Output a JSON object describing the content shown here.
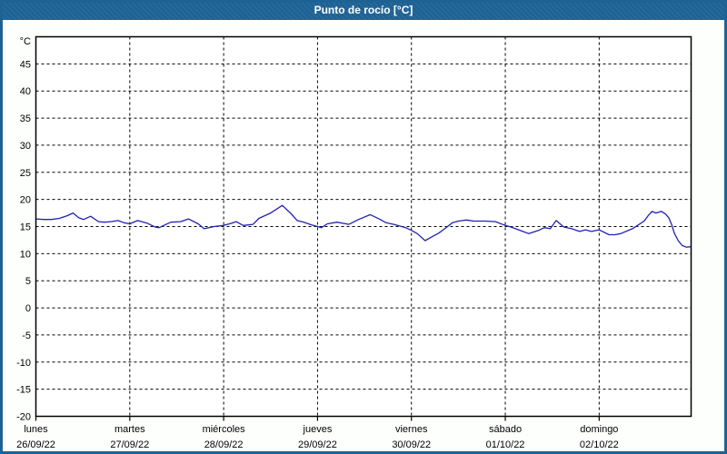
{
  "window": {
    "title": "Punto de rocío [°C]"
  },
  "colors": {
    "titlebar_bg": "#1e6294",
    "frame_border": "#1e6294",
    "page_bg": "#fdfffd",
    "plot_bg": "#ffffff",
    "grid": "#000000",
    "axis": "#000000",
    "text": "#000000",
    "line": "#2222b0",
    "title_text": "#ffffff"
  },
  "chart_data": {
    "type": "line",
    "title": "Punto de rocío [°C]",
    "unit_label": "°C",
    "ylim": [
      -20,
      50
    ],
    "yticks": [
      45,
      40,
      35,
      30,
      25,
      20,
      15,
      10,
      5,
      0,
      -5,
      -10,
      -15,
      -20
    ],
    "grid": "dashed",
    "x_hours_range": [
      0,
      167.5
    ],
    "x_gridline_hours": [
      24,
      48,
      72,
      96,
      120,
      144
    ],
    "x_tick_hours": [
      0,
      24,
      48,
      72,
      96,
      120,
      144
    ],
    "legend": "none",
    "day_labels": [
      {
        "name": "lunes",
        "date": "26/09/22",
        "hour": 0
      },
      {
        "name": "martes",
        "date": "27/09/22",
        "hour": 24
      },
      {
        "name": "miércoles",
        "date": "28/09/22",
        "hour": 48
      },
      {
        "name": "jueves",
        "date": "29/09/22",
        "hour": 72
      },
      {
        "name": "viernes",
        "date": "30/09/22",
        "hour": 96
      },
      {
        "name": "sábado",
        "date": "01/10/22",
        "hour": 120
      },
      {
        "name": "domingo",
        "date": "02/10/22",
        "hour": 144
      }
    ],
    "series": [
      {
        "name": "Punto de rocío",
        "color": "#2222b0",
        "points": [
          [
            0,
            16.4
          ],
          [
            2,
            16.3
          ],
          [
            4,
            16.3
          ],
          [
            6,
            16.5
          ],
          [
            8,
            17.0
          ],
          [
            9.5,
            17.5
          ],
          [
            11,
            16.6
          ],
          [
            12.2,
            16.3
          ],
          [
            14,
            16.9
          ],
          [
            16,
            15.9
          ],
          [
            17.5,
            15.8
          ],
          [
            19.2,
            15.9
          ],
          [
            21,
            16.1
          ],
          [
            22.5,
            15.7
          ],
          [
            24,
            15.5
          ],
          [
            26,
            16.1
          ],
          [
            28.5,
            15.6
          ],
          [
            30.5,
            14.9
          ],
          [
            31.5,
            14.8
          ],
          [
            33,
            15.3
          ],
          [
            34.5,
            15.8
          ],
          [
            37,
            15.9
          ],
          [
            39,
            16.4
          ],
          [
            41.5,
            15.5
          ],
          [
            43,
            14.6
          ],
          [
            45.5,
            15.0
          ],
          [
            48,
            15.2
          ],
          [
            50,
            15.6
          ],
          [
            51.2,
            15.9
          ],
          [
            53,
            15.2
          ],
          [
            55.5,
            15.4
          ],
          [
            57,
            16.5
          ],
          [
            60,
            17.5
          ],
          [
            63,
            18.9
          ],
          [
            65.5,
            17.2
          ],
          [
            66.8,
            16.1
          ],
          [
            68.5,
            15.8
          ],
          [
            70.5,
            15.3
          ],
          [
            72,
            15.0
          ],
          [
            73,
            14.8
          ],
          [
            74.5,
            15.5
          ],
          [
            77,
            15.8
          ],
          [
            80,
            15.4
          ],
          [
            82.5,
            16.3
          ],
          [
            85.5,
            17.2
          ],
          [
            88,
            16.3
          ],
          [
            89.5,
            15.7
          ],
          [
            91.5,
            15.4
          ],
          [
            93,
            15.1
          ],
          [
            94.5,
            14.8
          ],
          [
            96,
            14.3
          ],
          [
            97.5,
            13.7
          ],
          [
            99.5,
            12.4
          ],
          [
            101.5,
            13.2
          ],
          [
            103,
            13.8
          ],
          [
            104.5,
            14.6
          ],
          [
            106.5,
            15.7
          ],
          [
            108,
            16.0
          ],
          [
            110,
            16.2
          ],
          [
            112,
            16.0
          ],
          [
            115,
            16.0
          ],
          [
            117.5,
            15.9
          ],
          [
            120,
            15.2
          ],
          [
            121.5,
            14.9
          ],
          [
            124.5,
            14.1
          ],
          [
            126,
            13.7
          ],
          [
            128.5,
            14.3
          ],
          [
            130,
            14.8
          ],
          [
            131.5,
            14.6
          ],
          [
            133,
            16.1
          ],
          [
            135,
            14.9
          ],
          [
            137,
            14.6
          ],
          [
            139,
            14.1
          ],
          [
            140.5,
            14.4
          ],
          [
            142,
            14.1
          ],
          [
            144,
            14.4
          ],
          [
            146.5,
            13.5
          ],
          [
            148,
            13.5
          ],
          [
            149.5,
            13.7
          ],
          [
            152.5,
            14.6
          ],
          [
            154,
            15.3
          ],
          [
            155.5,
            16.0
          ],
          [
            156.5,
            17.0
          ],
          [
            157.5,
            17.8
          ],
          [
            158.5,
            17.5
          ],
          [
            159.9,
            17.8
          ],
          [
            161,
            17.3
          ],
          [
            161.8,
            16.6
          ],
          [
            162.5,
            15.4
          ],
          [
            163.2,
            13.8
          ],
          [
            164.2,
            12.4
          ],
          [
            165.2,
            11.5
          ],
          [
            166.3,
            11.2
          ],
          [
            167.5,
            11.3
          ]
        ]
      }
    ]
  }
}
